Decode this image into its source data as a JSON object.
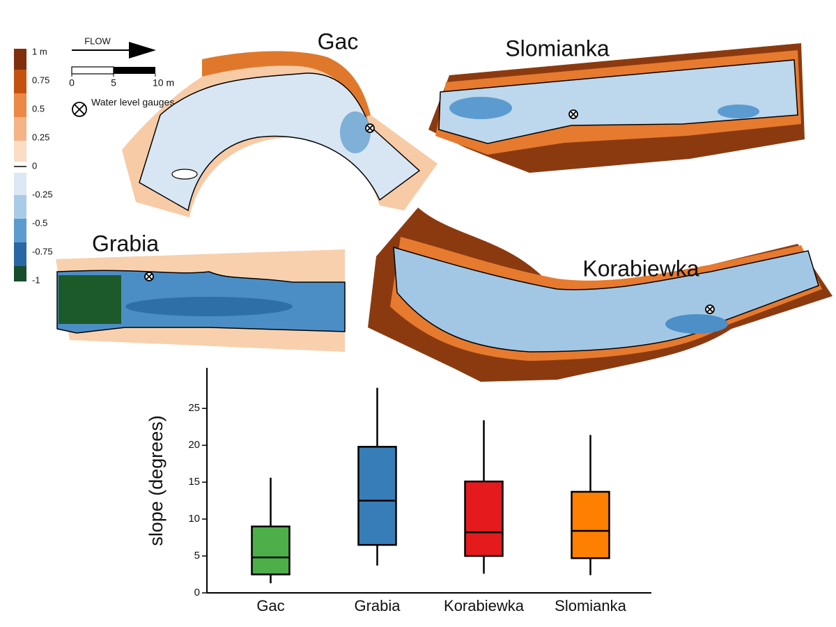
{
  "maps": {
    "titles": [
      "Gac",
      "Slomianka",
      "Grabia",
      "Korabiewka"
    ],
    "flow_label": "FLOW",
    "gauge_label": "Water level gauges",
    "scale_bar": {
      "ticks": [
        0,
        5,
        {
          "value": 10,
          "label": "10 m"
        }
      ]
    },
    "colorbar": {
      "ticks": [
        {
          "value": 1,
          "label": "1 m"
        },
        0.75,
        0.5,
        0.25,
        0,
        -0.25,
        -0.5,
        -0.75,
        -1
      ]
    }
  },
  "chart_data": {
    "type": "box",
    "y_label": "slope (degrees)",
    "categories": [
      "Gac",
      "Grabia",
      "Korabiewka",
      "Slomianka"
    ],
    "colors": [
      "#4daf4a",
      "#377eb8",
      "#e41a1c",
      "#ff7f00"
    ],
    "stats": [
      {
        "min": 1.3,
        "q1": 2.5,
        "median": 4.8,
        "q3": 9.0,
        "max": 15.6
      },
      {
        "min": 3.7,
        "q1": 6.5,
        "median": 12.5,
        "q3": 19.8,
        "max": 27.8
      },
      {
        "min": 2.6,
        "q1": 5.0,
        "median": 8.2,
        "q3": 15.1,
        "max": 23.4
      },
      {
        "min": 2.4,
        "q1": 4.7,
        "median": 8.4,
        "q3": 13.7,
        "max": 21.4
      }
    ],
    "ylim": [
      0,
      30.5
    ],
    "yticks": [
      0,
      5,
      10,
      15,
      20,
      25
    ]
  }
}
